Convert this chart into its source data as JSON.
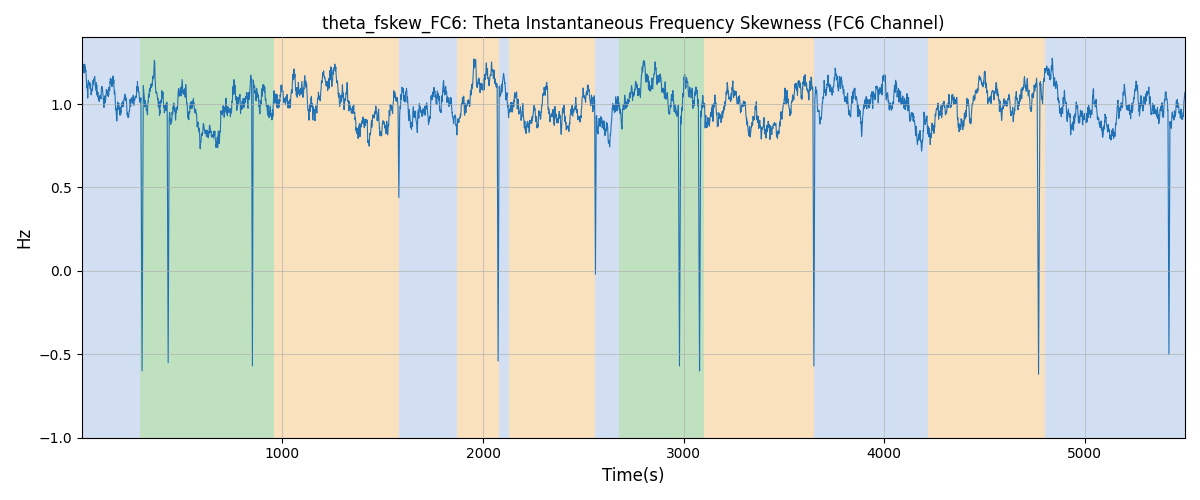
{
  "title": "theta_fskew_FC6: Theta Instantaneous Frequency Skewness (FC6 Channel)",
  "xlabel": "Time(s)",
  "ylabel": "Hz",
  "xlim": [
    0,
    5500
  ],
  "ylim": [
    -1.0,
    1.4
  ],
  "yticks": [
    -1.0,
    -0.5,
    0.0,
    0.5,
    1.0
  ],
  "xticks": [
    1000,
    2000,
    3000,
    4000,
    5000
  ],
  "line_color": "#2171b5",
  "line_width": 0.8,
  "title_fontsize": 12,
  "bg_bands": [
    {
      "xmin": 0,
      "xmax": 290,
      "color": "#aec6e8",
      "alpha": 0.55
    },
    {
      "xmin": 290,
      "xmax": 960,
      "color": "#8dc98d",
      "alpha": 0.55
    },
    {
      "xmin": 960,
      "xmax": 1580,
      "color": "#f5c98a",
      "alpha": 0.55
    },
    {
      "xmin": 1580,
      "xmax": 1870,
      "color": "#aec6e8",
      "alpha": 0.55
    },
    {
      "xmin": 1870,
      "xmax": 2080,
      "color": "#f5c98a",
      "alpha": 0.55
    },
    {
      "xmin": 2080,
      "xmax": 2130,
      "color": "#aec6e8",
      "alpha": 0.55
    },
    {
      "xmin": 2130,
      "xmax": 2560,
      "color": "#f5c98a",
      "alpha": 0.55
    },
    {
      "xmin": 2560,
      "xmax": 2680,
      "color": "#aec6e8",
      "alpha": 0.55
    },
    {
      "xmin": 2680,
      "xmax": 3100,
      "color": "#8dc98d",
      "alpha": 0.55
    },
    {
      "xmin": 3100,
      "xmax": 3650,
      "color": "#f5c98a",
      "alpha": 0.55
    },
    {
      "xmin": 3650,
      "xmax": 4220,
      "color": "#aec6e8",
      "alpha": 0.55
    },
    {
      "xmin": 4220,
      "xmax": 4800,
      "color": "#f5c98a",
      "alpha": 0.55
    },
    {
      "xmin": 4800,
      "xmax": 5500,
      "color": "#aec6e8",
      "alpha": 0.55
    }
  ],
  "grid_color": "#aaaaaa",
  "grid_alpha": 0.6,
  "seed": 17,
  "figsize": [
    12.0,
    5.0
  ],
  "dpi": 100
}
